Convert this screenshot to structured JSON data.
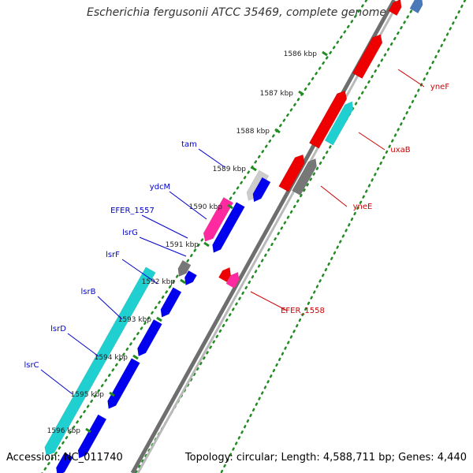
{
  "title": "Escherichia fergusonii ATCC 35469, complete genome",
  "footer": {
    "accession": "Accession: NC_011740",
    "summary": "Topology: circular; Length: 4,588,711 bp; Genes: 4,440"
  },
  "ticks": [
    "1586 kbp",
    "1587 kbp",
    "1588 kbp",
    "1589 kbp",
    "1590 kbp",
    "1591 kbp",
    "1592 kbp",
    "1593 kbp",
    "1594 kbp",
    "1595 kbp",
    "1596 kbp"
  ],
  "gene_labels_left": [
    "tam",
    "ydcM",
    "EFER_1557",
    "lsrG",
    "lsrF",
    "lsrB",
    "lsrD",
    "lsrC"
  ],
  "gene_labels_right": [
    "yneF",
    "uxaB",
    "yneE",
    "EFER_1558"
  ],
  "colors": {
    "forward_label": "#0000cc",
    "reverse_label": "#cc0000",
    "cds_forward": "#0000ee",
    "cds_reverse": "#ee0000",
    "cyan_track": "#20d0d0",
    "tick_green": "#228b22",
    "backbone": "#888888",
    "pink": "#ff2aa0",
    "gray_gene": "#777777",
    "light_gray_gene": "#cccccc",
    "steel_blue": "#4a78b8"
  }
}
